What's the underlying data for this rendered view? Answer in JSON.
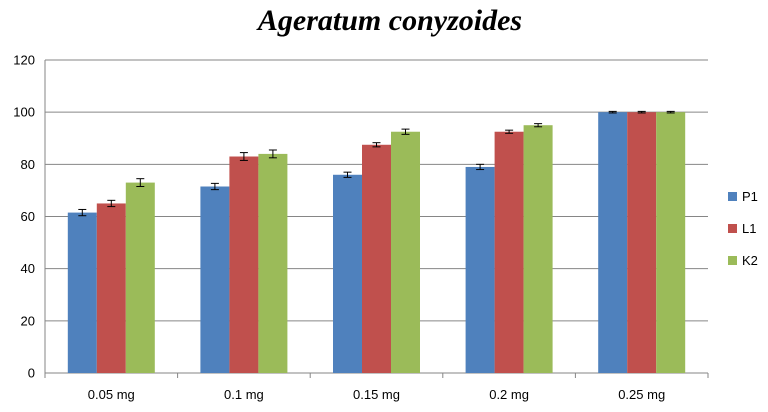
{
  "chart_data": {
    "type": "bar",
    "title": "Ageratum conyzoides",
    "xlabel": "",
    "ylabel": "",
    "categories": [
      "0.05 mg",
      "0.1 mg",
      "0.15 mg",
      "0.2 mg",
      "0.25 mg"
    ],
    "ylim": [
      0,
      120
    ],
    "yticks": [
      0,
      20,
      40,
      60,
      80,
      100,
      120
    ],
    "grid": true,
    "legend_position": "right",
    "series": [
      {
        "name": "P1",
        "color": "#4F81BD",
        "values": [
          61.5,
          71.5,
          76,
          79,
          100
        ],
        "errors": [
          1.2,
          1.2,
          1.0,
          1.0,
          0.3
        ]
      },
      {
        "name": "L1",
        "color": "#C0504D",
        "values": [
          65,
          83,
          87.5,
          92.5,
          100
        ],
        "errors": [
          1.2,
          1.5,
          0.8,
          0.6,
          0.3
        ]
      },
      {
        "name": "K2",
        "color": "#9BBB59",
        "values": [
          73,
          84,
          92.5,
          95,
          100
        ],
        "errors": [
          1.5,
          1.5,
          1.0,
          0.6,
          0.3
        ]
      }
    ]
  }
}
